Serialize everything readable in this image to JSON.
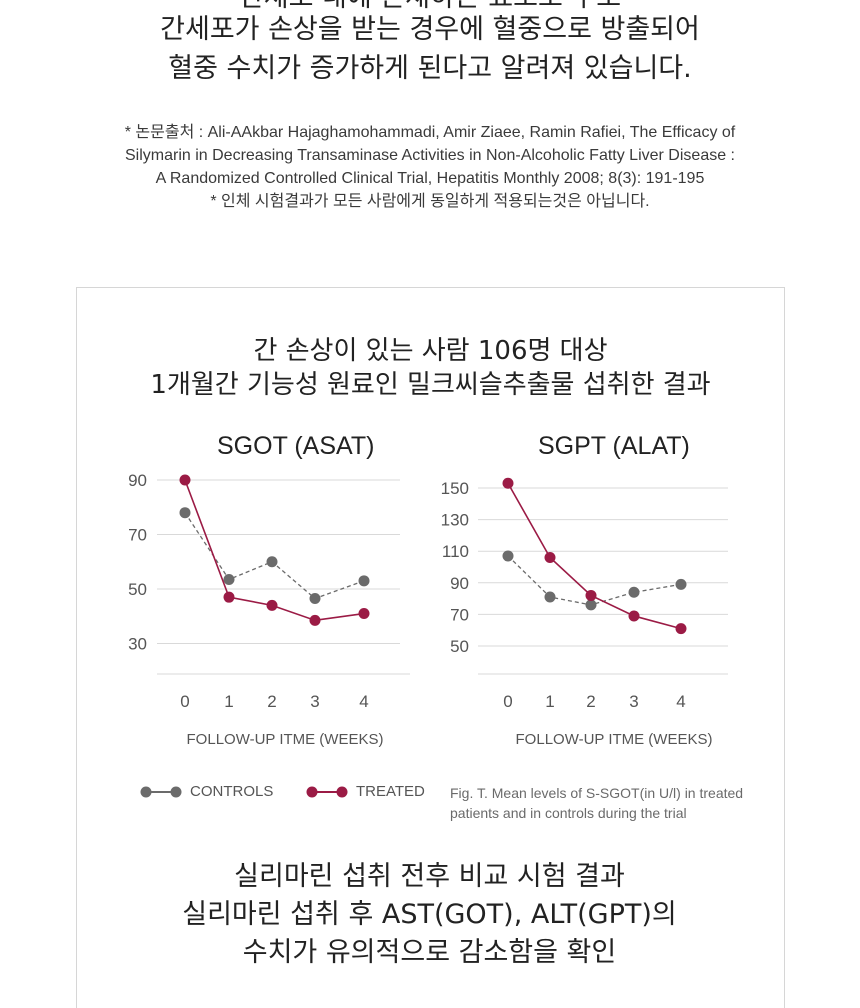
{
  "intro": {
    "line1": "간세포 내에 존재하는 효소로 주로",
    "line2": "간세포가 손상을 받는 경우에 혈중으로 방출되어",
    "line3": "혈중 수치가 증가하게 된다고 알려져 있습니다."
  },
  "references": {
    "line1": "* 논문출처 : Ali-AAkbar Hajaghamohammadi, Amir Ziaee, Ramin Rafiei, The Efficacy of",
    "line2": "Silymarin in Decreasing Transaminase Activities in Non-Alcoholic Fatty Liver Disease :",
    "line3": "A Randomized Controlled Clinical Trial, Hepatitis Monthly 2008; 8(3): 191-195",
    "line4": "* 인체 시험결과가 모든 사람에게 동일하게 적용되는것은 아닙니다."
  },
  "box": {
    "title1": "간 손상이 있는 사람 106명 대상",
    "title2": "1개월간 기능성 원료인 밀크씨슬추출물 섭취한 결과"
  },
  "colors": {
    "controls": "#6b6b6b",
    "treated": "#9b1b45",
    "grid": "#d9d9d9"
  },
  "chart_data": [
    {
      "type": "line",
      "title": "SGOT (ASAT)",
      "x": [
        0,
        1,
        2,
        3,
        4
      ],
      "x_tick_labels": [
        "0",
        "1",
        "2",
        "3",
        "4"
      ],
      "xlabel": "FOLLOW-UP ITME (WEEKS)",
      "ylabel": "",
      "y_ticks": [
        90,
        70,
        50,
        30
      ],
      "ylim": [
        20,
        92
      ],
      "grid": true,
      "series": [
        {
          "name": "CONTROLS",
          "style": "dashed",
          "values": [
            78,
            53.5,
            60,
            46.5,
            53
          ]
        },
        {
          "name": "TREATED",
          "style": "solid",
          "values": [
            90,
            47,
            44,
            38.5,
            41
          ]
        }
      ]
    },
    {
      "type": "line",
      "title": "SGPT (ALAT)",
      "x": [
        0,
        1,
        2,
        3,
        4
      ],
      "x_tick_labels": [
        "0",
        "1",
        "2",
        "3",
        "4"
      ],
      "xlabel": "FOLLOW-UP ITME (WEEKS)",
      "ylabel": "",
      "y_ticks": [
        150,
        130,
        110,
        90,
        70,
        50
      ],
      "ylim": [
        30,
        153
      ],
      "grid": true,
      "series": [
        {
          "name": "CONTROLS",
          "style": "dashed",
          "values": [
            107,
            81,
            76,
            84,
            89
          ]
        },
        {
          "name": "TREATED",
          "style": "solid",
          "values": [
            153,
            106,
            82,
            69,
            61
          ]
        }
      ]
    }
  ],
  "legend": {
    "controls": "CONTROLS",
    "treated": "TREATED",
    "placement": "bottom-left"
  },
  "caption": {
    "line1": "Fig. T. Mean levels of S-SGOT(in U/l) in treated",
    "line2": "patients and in controls during the trial"
  },
  "summary": {
    "line1": "실리마린 섭취 전후 비교 시험 결과",
    "line2": "실리마린 섭취 후 AST(GOT), ALT(GPT)의",
    "line3": "수치가 유의적으로 감소함을 확인"
  }
}
